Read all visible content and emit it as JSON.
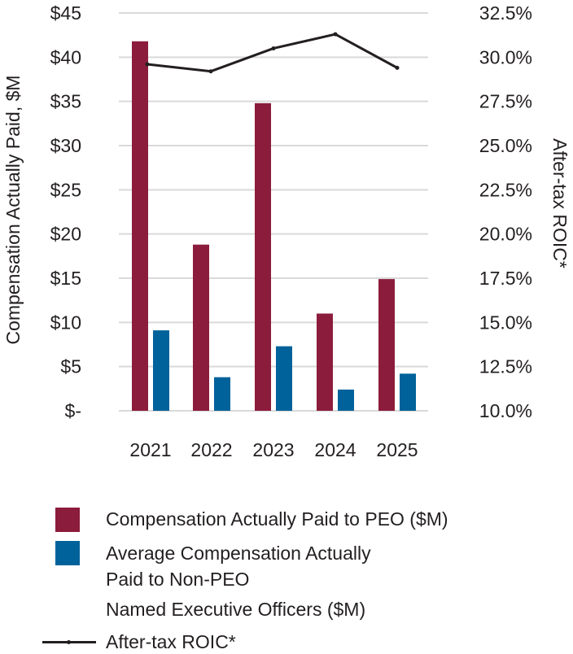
{
  "chart_data": {
    "type": "bar",
    "categories": [
      "2021",
      "2022",
      "2023",
      "2024",
      "2025"
    ],
    "series": [
      {
        "name": "Compensation Actually Paid to PEO ($M)",
        "kind": "bar",
        "axis": "left",
        "color": "#8c1c3c",
        "values": [
          41.8,
          18.8,
          34.8,
          11.0,
          14.9
        ]
      },
      {
        "name": "Average Compensation Actually Paid to Non-PEO Named Executive Officers ($M)",
        "kind": "bar",
        "axis": "left",
        "color": "#00629b",
        "values": [
          9.1,
          3.8,
          7.3,
          2.4,
          4.2
        ]
      },
      {
        "name": "After-tax ROIC*",
        "kind": "line",
        "axis": "right",
        "color": "#231f20",
        "values": [
          29.6,
          29.2,
          30.5,
          31.3,
          29.4
        ]
      }
    ],
    "ylabel": "Compensation Actually Paid, $M",
    "y2label": "After-tax ROIC*",
    "ylim": [
      0,
      45
    ],
    "y2lim": [
      10.0,
      32.5
    ],
    "yticks": [
      0,
      5,
      10,
      15,
      20,
      25,
      30,
      35,
      40,
      45
    ],
    "ytick_labels": [
      "$-",
      "$5",
      "$10",
      "$15",
      "$20",
      "$25",
      "$30",
      "$35",
      "$40",
      "$45"
    ],
    "y2ticks": [
      10.0,
      12.5,
      15.0,
      17.5,
      20.0,
      22.5,
      25.0,
      27.5,
      30.0,
      32.5
    ],
    "y2tick_labels": [
      "10.0%",
      "12.5%",
      "15.0%",
      "17.5%",
      "20.0%",
      "22.5%",
      "25.0%",
      "27.5%",
      "30.0%",
      "32.5%"
    ],
    "grid": true,
    "legend": {
      "position": "bottom",
      "peo_label": "Compensation Actually Paid to PEO ($M)",
      "neo_label_line1": "Average Compensation Actually",
      "neo_label_line2": "Paid to Non-PEO",
      "neo_label_line3": "Named Executive Officers ($M)",
      "roic_label": "After-tax ROIC*"
    }
  }
}
